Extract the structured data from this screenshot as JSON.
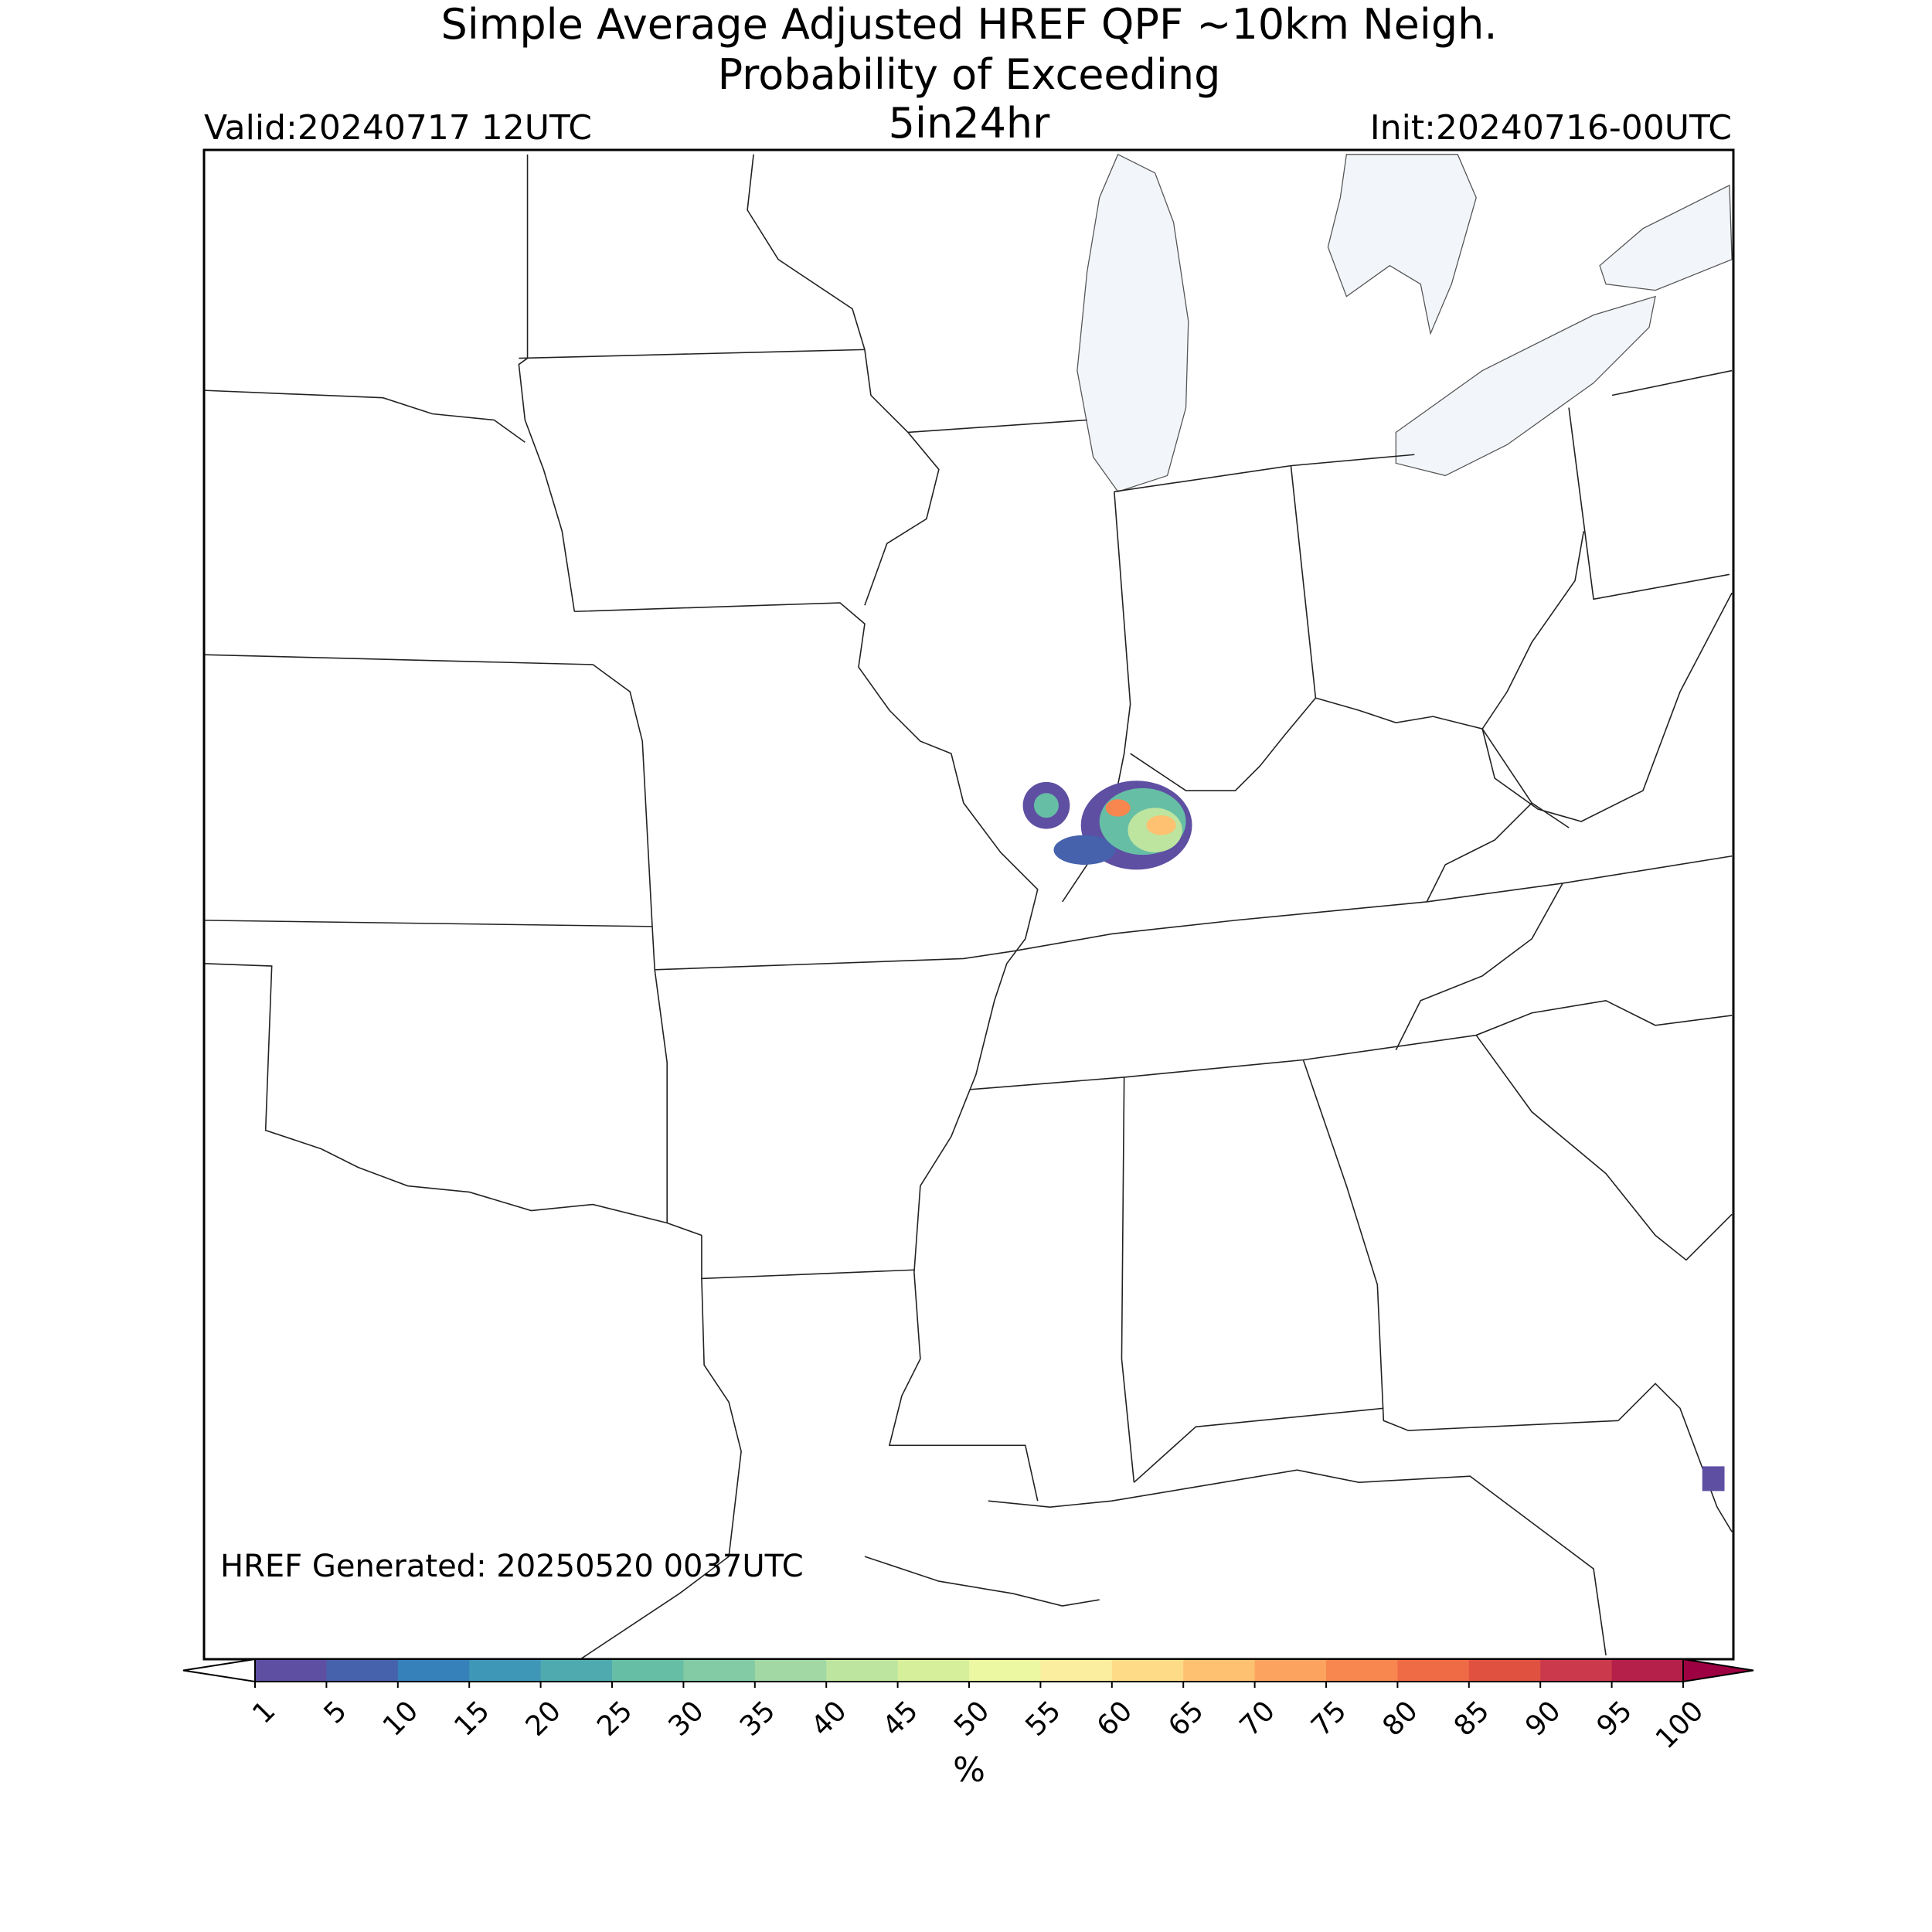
{
  "header": {
    "title_line1": "Simple Average Adjusted HREF QPF ~10km Neigh.",
    "title_line2": "Probability of Exceeding",
    "threshold": "5in24hr",
    "valid": "Valid:20240717 12UTC",
    "init": "Init:20240716-00UTC"
  },
  "map": {
    "footnote": "HREF Generated: 20250520 0037UTC"
  },
  "colorbar": {
    "ticks": [
      1,
      5,
      10,
      15,
      20,
      25,
      30,
      35,
      40,
      45,
      50,
      55,
      60,
      65,
      70,
      75,
      80,
      85,
      90,
      95,
      100
    ],
    "colors": [
      "#5e4fa2",
      "#4662ad",
      "#3681ba",
      "#3f97b7",
      "#4faab0",
      "#66bea5",
      "#83cba4",
      "#a1d8a4",
      "#bde5a0",
      "#d6ef9b",
      "#edf8a3",
      "#fcee9f",
      "#fedb87",
      "#fdc171",
      "#fca45f",
      "#f8864f",
      "#ef6b46",
      "#e0523f",
      "#cb3a4c",
      "#b4204a"
    ],
    "under_color": "#ffffff",
    "over_color": "#9e0142",
    "label": "%"
  }
}
